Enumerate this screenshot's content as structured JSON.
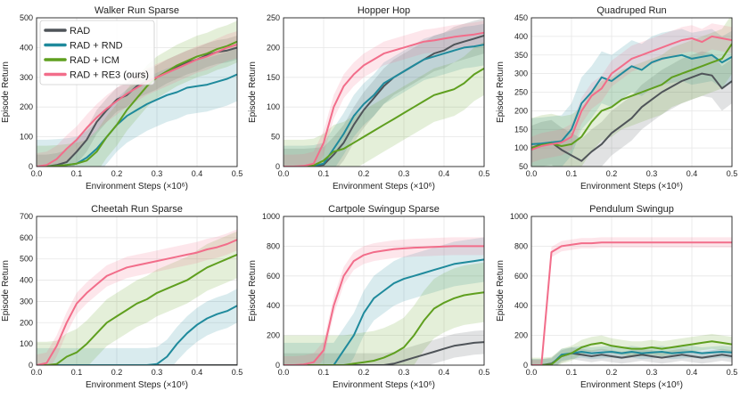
{
  "chart_data": {
    "type": "line",
    "colors": {
      "RAD": "#4f5459",
      "RAD + RND": "#1f8a9c",
      "RAD + ICM": "#5f9f1f",
      "RAD + RE3 (ours)": "#f26d8a"
    },
    "legend": {
      "location": "top-left",
      "entries": [
        "RAD",
        "RAD + RND",
        "RAD + ICM",
        "RAD + RE3 (ours)"
      ]
    },
    "x": [
      0.0,
      0.025,
      0.05,
      0.075,
      0.1,
      0.125,
      0.15,
      0.175,
      0.2,
      0.225,
      0.25,
      0.275,
      0.3,
      0.325,
      0.35,
      0.375,
      0.4,
      0.425,
      0.45,
      0.475,
      0.5
    ],
    "panels": [
      {
        "title": "Walker Run Sparse",
        "xlabel": "Environment Steps (×10⁶)",
        "ylabel": "Episode Return",
        "xlim": [
          0,
          0.5
        ],
        "ylim": [
          0,
          500
        ],
        "xticks": [
          "0.0",
          "0.1",
          "0.2",
          "0.3",
          "0.4",
          "0.5"
        ],
        "yticks": [
          "0",
          "100",
          "200",
          "300",
          "400",
          "500"
        ],
        "series": [
          {
            "name": "RAD",
            "values": [
              0,
              0,
              5,
              15,
              50,
              90,
              150,
              190,
              225,
              240,
              270,
              285,
              300,
              320,
              335,
              350,
              360,
              375,
              385,
              390,
              400
            ],
            "band": 40
          },
          {
            "name": "RAD + RND",
            "values": [
              0,
              0,
              2,
              5,
              10,
              30,
              60,
              100,
              140,
              170,
              190,
              210,
              225,
              240,
              250,
              265,
              270,
              275,
              285,
              295,
              310
            ],
            "band": 90
          },
          {
            "name": "RAD + ICM",
            "values": [
              0,
              0,
              2,
              5,
              10,
              20,
              50,
              100,
              140,
              190,
              230,
              270,
              300,
              320,
              340,
              355,
              370,
              380,
              395,
              405,
              420
            ],
            "band": 70
          },
          {
            "name": "RAD + RE3 (ours)",
            "values": [
              0,
              5,
              25,
              60,
              90,
              130,
              165,
              195,
              220,
              245,
              265,
              285,
              300,
              315,
              330,
              345,
              360,
              370,
              385,
              400,
              410
            ],
            "band": 45
          }
        ]
      },
      {
        "title": "Hopper Hop",
        "xlabel": "Environment Steps (×10⁶)",
        "ylabel": "Episode Return",
        "xlim": [
          0,
          0.5
        ],
        "ylim": [
          0,
          250
        ],
        "xticks": [
          "0.0",
          "0.1",
          "0.2",
          "0.3",
          "0.4",
          "0.5"
        ],
        "yticks": [
          "0",
          "50",
          "100",
          "150",
          "200",
          "250"
        ],
        "series": [
          {
            "name": "RAD",
            "values": [
              0,
              0,
              0,
              1,
              3,
              20,
              40,
              70,
              95,
              115,
              135,
              150,
              160,
              170,
              180,
              190,
              195,
              205,
              210,
              215,
              220
            ],
            "band": 30
          },
          {
            "name": "RAD + RND",
            "values": [
              0,
              0,
              0,
              1,
              5,
              30,
              55,
              85,
              105,
              120,
              140,
              150,
              160,
              170,
              180,
              185,
              190,
              195,
              200,
              202,
              205
            ],
            "band": 35
          },
          {
            "name": "RAD + ICM",
            "values": [
              0,
              0,
              0,
              2,
              10,
              25,
              30,
              40,
              50,
              60,
              70,
              80,
              90,
              100,
              110,
              120,
              125,
              130,
              140,
              155,
              165
            ],
            "band": 45
          },
          {
            "name": "RAD + RE3 (ours)",
            "values": [
              0,
              0,
              1,
              5,
              40,
              100,
              135,
              155,
              170,
              180,
              190,
              195,
              200,
              205,
              210,
              212,
              215,
              218,
              220,
              222,
              225
            ],
            "band": 20
          }
        ]
      },
      {
        "title": "Quadruped Run",
        "xlabel": "Environment Steps (×10⁶)",
        "ylabel": "Episode Return",
        "xlim": [
          0,
          0.5
        ],
        "ylim": [
          50,
          450
        ],
        "xticks": [
          "0.0",
          "0.1",
          "0.2",
          "0.3",
          "0.4",
          "0.5"
        ],
        "yticks": [
          "50",
          "100",
          "150",
          "200",
          "250",
          "300",
          "350",
          "400",
          "450"
        ],
        "series": [
          {
            "name": "RAD",
            "values": [
              100,
              110,
              115,
              95,
              80,
              65,
              90,
              110,
              140,
              160,
              180,
              210,
              230,
              250,
              265,
              280,
              290,
              300,
              295,
              260,
              280
            ],
            "band": 60
          },
          {
            "name": "RAD + RND",
            "values": [
              110,
              112,
              115,
              118,
              150,
              220,
              250,
              290,
              280,
              300,
              320,
              310,
              330,
              340,
              345,
              350,
              340,
              345,
              350,
              330,
              345
            ],
            "band": 70
          },
          {
            "name": "RAD + ICM",
            "values": [
              100,
              108,
              112,
              105,
              110,
              130,
              170,
              200,
              210,
              230,
              240,
              250,
              260,
              270,
              290,
              300,
              310,
              320,
              330,
              340,
              380
            ],
            "band": 80
          },
          {
            "name": "RAD + RE3 (ours)",
            "values": [
              95,
              105,
              110,
              115,
              130,
              200,
              240,
              260,
              300,
              320,
              340,
              350,
              360,
              370,
              380,
              390,
              395,
              385,
              400,
              395,
              390
            ],
            "band": 35
          }
        ]
      },
      {
        "title": "Cheetah Run Sparse",
        "xlabel": "Environment Steps (×10⁶)",
        "ylabel": "Episode Return",
        "xlim": [
          0,
          0.5
        ],
        "ylim": [
          0,
          700
        ],
        "xticks": [
          "0.0",
          "0.1",
          "0.2",
          "0.3",
          "0.4",
          "0.5"
        ],
        "yticks": [
          "0",
          "100",
          "200",
          "300",
          "400",
          "500",
          "600",
          "700"
        ],
        "series": [
          {
            "name": "RAD",
            "values": [
              0,
              0,
              0,
              0,
              0,
              0,
              0,
              0,
              0,
              0,
              0,
              0,
              0,
              0,
              0,
              0,
              0,
              0,
              0,
              0,
              0
            ],
            "band": 5
          },
          {
            "name": "RAD + RND",
            "values": [
              0,
              0,
              0,
              0,
              0,
              0,
              0,
              0,
              0,
              0,
              0,
              0,
              5,
              40,
              100,
              150,
              190,
              220,
              240,
              255,
              280
            ],
            "band": 80
          },
          {
            "name": "RAD + ICM",
            "values": [
              0,
              0,
              5,
              40,
              60,
              100,
              150,
              200,
              230,
              260,
              290,
              310,
              340,
              360,
              380,
              400,
              430,
              460,
              480,
              500,
              520
            ],
            "band": 110
          },
          {
            "name": "RAD + RE3 (ours)",
            "values": [
              0,
              10,
              90,
              200,
              290,
              340,
              380,
              420,
              440,
              460,
              470,
              480,
              490,
              500,
              510,
              520,
              530,
              545,
              555,
              570,
              590
            ],
            "band": 50
          }
        ]
      },
      {
        "title": "Cartpole Swingup Sparse",
        "xlabel": "Environment Steps (×10⁶)",
        "ylabel": "Episode Return",
        "xlim": [
          0,
          0.5
        ],
        "ylim": [
          0,
          1000
        ],
        "xticks": [
          "0.0",
          "0.1",
          "0.2",
          "0.3",
          "0.4",
          "0.5"
        ],
        "yticks": [
          "0",
          "200",
          "400",
          "600",
          "800",
          "1000"
        ],
        "series": [
          {
            "name": "RAD",
            "values": [
              0,
              0,
              0,
              0,
              0,
              0,
              0,
              0,
              0,
              0,
              0,
              10,
              30,
              50,
              70,
              90,
              110,
              130,
              140,
              150,
              155
            ],
            "band": 80
          },
          {
            "name": "RAD + RND",
            "values": [
              0,
              0,
              0,
              0,
              0,
              0,
              100,
              200,
              350,
              450,
              500,
              550,
              580,
              600,
              620,
              640,
              660,
              680,
              690,
              700,
              710
            ],
            "band": 150
          },
          {
            "name": "RAD + ICM",
            "values": [
              0,
              0,
              0,
              0,
              0,
              0,
              0,
              10,
              20,
              30,
              50,
              80,
              120,
              200,
              300,
              380,
              420,
              450,
              470,
              480,
              490
            ],
            "band": 200
          },
          {
            "name": "RAD + RE3 (ours)",
            "values": [
              0,
              0,
              5,
              20,
              100,
              400,
              600,
              700,
              740,
              760,
              770,
              780,
              785,
              790,
              792,
              795,
              798,
              800,
              800,
              800,
              800
            ],
            "band": 60
          }
        ]
      },
      {
        "title": "Pendulum Swingup",
        "xlabel": "Environment Steps (×10⁶)",
        "ylabel": "Episode Return",
        "xlim": [
          0,
          0.5
        ],
        "ylim": [
          0,
          1000
        ],
        "xticks": [
          "0.0",
          "0.1",
          "0.2",
          "0.3",
          "0.4",
          "0.5"
        ],
        "yticks": [
          "0",
          "200",
          "400",
          "600",
          "800",
          "1000"
        ],
        "series": [
          {
            "name": "RAD",
            "values": [
              0,
              0,
              10,
              60,
              80,
              70,
              60,
              70,
              60,
              50,
              60,
              70,
              60,
              50,
              60,
              70,
              60,
              50,
              60,
              70,
              60
            ],
            "band": 40
          },
          {
            "name": "RAD + RND",
            "values": [
              0,
              0,
              5,
              70,
              80,
              90,
              80,
              85,
              90,
              80,
              90,
              80,
              85,
              90,
              80,
              85,
              90,
              80,
              85,
              90,
              85
            ],
            "band": 40
          },
          {
            "name": "RAD + ICM",
            "values": [
              0,
              0,
              5,
              60,
              80,
              120,
              140,
              150,
              130,
              120,
              110,
              110,
              120,
              110,
              120,
              130,
              140,
              150,
              160,
              150,
              140
            ],
            "band": 50
          },
          {
            "name": "RAD + RE3 (ours)",
            "values": [
              0,
              0,
              760,
              800,
              810,
              820,
              820,
              825,
              825,
              825,
              825,
              825,
              825,
              825,
              825,
              825,
              825,
              825,
              825,
              825,
              825
            ],
            "band": 35
          }
        ]
      }
    ]
  }
}
